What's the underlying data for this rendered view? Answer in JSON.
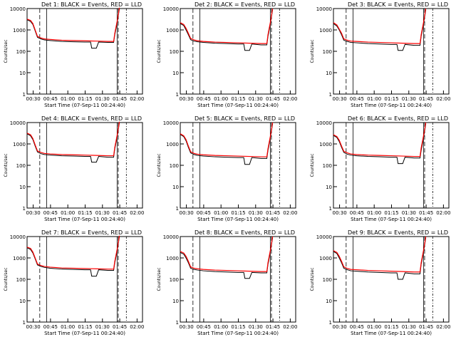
{
  "figure": {
    "ylabel": "Counts/sec",
    "xlabel_prefix": "Start Time (07-Sep-11 00:24:40)"
  },
  "colors": {
    "events": "#000000",
    "lld": "#ff0000",
    "background": "#ffffff"
  },
  "chart_data": [
    {
      "type": "line",
      "title": "Det 1: BLACK = Events, RED = LLD",
      "xlabel": "Start Time (07-Sep-11 00:24:40)",
      "ylabel": "Counts/sec",
      "x_ticks": [
        "00:30",
        "00:45",
        "01:00",
        "01:15",
        "01:30",
        "01:45",
        "02:00"
      ],
      "y_ticks": [
        "1",
        "10",
        "100",
        "1000",
        "10000"
      ],
      "y_scale": "log",
      "ylim": [
        1,
        10000
      ],
      "series": [
        {
          "name": "BLACK = Events",
          "x": [
            0,
            3,
            5,
            7,
            9,
            12,
            15,
            20,
            30,
            40,
            50,
            55,
            56,
            60,
            62,
            70,
            75,
            76,
            78,
            80
          ],
          "y": [
            3000,
            2500,
            1800,
            900,
            450,
            380,
            340,
            320,
            290,
            280,
            270,
            270,
            140,
            140,
            270,
            260,
            260,
            600,
            2000,
            10000
          ]
        },
        {
          "name": "RED = LLD",
          "x": [
            0,
            3,
            5,
            7,
            9,
            12,
            15,
            20,
            30,
            40,
            50,
            60,
            70,
            75,
            76,
            78,
            80
          ],
          "y": [
            3200,
            2800,
            2000,
            1000,
            500,
            420,
            380,
            360,
            330,
            320,
            310,
            300,
            290,
            290,
            700,
            2500,
            11000
          ]
        }
      ]
    },
    {
      "type": "line",
      "title": "Det 2: BLACK = Events, RED = LLD",
      "xlabel": "Start Time (07-Sep-11 00:24:40)",
      "ylabel": "Counts/sec",
      "x_ticks": [
        "00:30",
        "00:45",
        "01:00",
        "01:15",
        "01:30",
        "01:45",
        "02:00"
      ],
      "y_ticks": [
        "1",
        "10",
        "100",
        "1000",
        "10000"
      ],
      "y_scale": "log",
      "ylim": [
        1,
        10000
      ],
      "series": [
        {
          "name": "BLACK = Events",
          "x": [
            0,
            3,
            5,
            7,
            9,
            12,
            15,
            20,
            30,
            40,
            50,
            55,
            56,
            60,
            62,
            70,
            75,
            76,
            78,
            80
          ],
          "y": [
            2000,
            1600,
            1000,
            600,
            350,
            300,
            280,
            260,
            240,
            230,
            220,
            220,
            110,
            110,
            220,
            200,
            200,
            500,
            1800,
            9000
          ]
        },
        {
          "name": "RED = LLD",
          "x": [
            0,
            3,
            5,
            7,
            9,
            12,
            15,
            20,
            30,
            40,
            50,
            60,
            70,
            75,
            76,
            78,
            80
          ],
          "y": [
            2200,
            1800,
            1200,
            700,
            400,
            340,
            310,
            290,
            270,
            260,
            250,
            240,
            230,
            230,
            600,
            2200,
            10000
          ]
        }
      ]
    },
    {
      "type": "line",
      "title": "Det 3: BLACK = Events, RED = LLD",
      "xlabel": "Start Time (07-Sep-11 00:24:40)",
      "ylabel": "Counts/sec",
      "x_ticks": [
        "00:30",
        "00:45",
        "01:00",
        "01:15",
        "01:30",
        "01:45",
        "02:00"
      ],
      "y_ticks": [
        "1",
        "10",
        "100",
        "1000",
        "10000"
      ],
      "y_scale": "log",
      "ylim": [
        1,
        10000
      ],
      "series": [
        {
          "name": "BLACK = Events",
          "x": [
            0,
            3,
            5,
            7,
            9,
            12,
            15,
            20,
            30,
            40,
            50,
            55,
            56,
            60,
            62,
            70,
            75,
            76,
            78,
            80
          ],
          "y": [
            2000,
            1500,
            1000,
            600,
            330,
            290,
            260,
            250,
            230,
            220,
            210,
            210,
            110,
            110,
            210,
            190,
            190,
            500,
            1800,
            9000
          ]
        },
        {
          "name": "RED = LLD",
          "x": [
            0,
            3,
            5,
            7,
            9,
            12,
            15,
            20,
            30,
            40,
            50,
            60,
            70,
            75,
            76,
            78,
            80
          ],
          "y": [
            2200,
            1700,
            1100,
            700,
            380,
            330,
            300,
            290,
            270,
            260,
            250,
            240,
            230,
            230,
            600,
            2200,
            10000
          ]
        }
      ]
    },
    {
      "type": "line",
      "title": "Det 4: BLACK = Events, RED = LLD",
      "xlabel": "Start Time (07-Sep-11 00:24:40)",
      "ylabel": "Counts/sec",
      "x_ticks": [
        "00:30",
        "00:45",
        "01:00",
        "01:15",
        "01:30",
        "01:45",
        "02:00"
      ],
      "y_ticks": [
        "1",
        "10",
        "100",
        "1000",
        "10000"
      ],
      "y_scale": "log",
      "ylim": [
        1,
        10000
      ],
      "series": [
        {
          "name": "BLACK = Events",
          "x": [
            0,
            3,
            5,
            7,
            9,
            12,
            15,
            20,
            30,
            40,
            50,
            55,
            56,
            60,
            62,
            70,
            75,
            76,
            78,
            80
          ],
          "y": [
            3000,
            2400,
            1600,
            800,
            420,
            350,
            320,
            300,
            280,
            270,
            260,
            260,
            140,
            140,
            260,
            240,
            240,
            600,
            2000,
            10000
          ]
        },
        {
          "name": "RED = LLD",
          "x": [
            0,
            3,
            5,
            7,
            9,
            12,
            15,
            20,
            30,
            40,
            50,
            60,
            70,
            75,
            76,
            78,
            80
          ],
          "y": [
            3200,
            2700,
            1800,
            900,
            470,
            400,
            360,
            340,
            320,
            310,
            300,
            290,
            280,
            280,
            700,
            2500,
            11000
          ]
        }
      ]
    },
    {
      "type": "line",
      "title": "Det 5: BLACK = Events, RED = LLD",
      "xlabel": "Start Time (07-Sep-11 00:24:40)",
      "ylabel": "Counts/sec",
      "x_ticks": [
        "00:30",
        "00:45",
        "01:00",
        "01:15",
        "01:30",
        "01:45",
        "02:00"
      ],
      "y_ticks": [
        "1",
        "10",
        "100",
        "1000",
        "10000"
      ],
      "y_scale": "log",
      "ylim": [
        1,
        10000
      ],
      "series": [
        {
          "name": "BLACK = Events",
          "x": [
            0,
            3,
            5,
            7,
            9,
            12,
            15,
            20,
            30,
            40,
            50,
            55,
            56,
            60,
            62,
            70,
            75,
            76,
            78,
            80
          ],
          "y": [
            2800,
            2200,
            1400,
            700,
            380,
            320,
            290,
            270,
            250,
            240,
            230,
            230,
            110,
            110,
            230,
            210,
            210,
            500,
            1800,
            9000
          ]
        },
        {
          "name": "RED = LLD",
          "x": [
            0,
            3,
            5,
            7,
            9,
            12,
            15,
            20,
            30,
            40,
            50,
            60,
            70,
            75,
            76,
            78,
            80
          ],
          "y": [
            3000,
            2400,
            1600,
            800,
            430,
            360,
            330,
            310,
            290,
            280,
            270,
            260,
            250,
            250,
            600,
            2200,
            10000
          ]
        }
      ]
    },
    {
      "type": "line",
      "title": "Det 6: BLACK = Events, RED = LLD",
      "xlabel": "Start Time (07-Sep-11 00:24:40)",
      "ylabel": "Counts/sec",
      "x_ticks": [
        "00:30",
        "00:45",
        "01:00",
        "01:15",
        "01:30",
        "01:45",
        "02:00"
      ],
      "y_ticks": [
        "1",
        "10",
        "100",
        "1000",
        "10000"
      ],
      "y_scale": "log",
      "ylim": [
        1,
        10000
      ],
      "series": [
        {
          "name": "BLACK = Events",
          "x": [
            0,
            3,
            5,
            7,
            9,
            12,
            15,
            20,
            30,
            40,
            50,
            55,
            56,
            60,
            62,
            70,
            75,
            76,
            78,
            80
          ],
          "y": [
            2500,
            2000,
            1300,
            700,
            400,
            330,
            300,
            280,
            260,
            250,
            240,
            240,
            120,
            120,
            240,
            220,
            220,
            500,
            1800,
            9000
          ]
        },
        {
          "name": "RED = LLD",
          "x": [
            0,
            3,
            5,
            7,
            9,
            12,
            15,
            20,
            30,
            40,
            50,
            60,
            70,
            75,
            76,
            78,
            80
          ],
          "y": [
            2700,
            2200,
            1500,
            800,
            450,
            380,
            340,
            320,
            300,
            290,
            280,
            270,
            260,
            260,
            650,
            2300,
            10000
          ]
        }
      ]
    },
    {
      "type": "line",
      "title": "Det 7: BLACK = Events, RED = LLD",
      "xlabel": "Start Time (07-Sep-11 00:24:40)",
      "ylabel": "Counts/sec",
      "x_ticks": [
        "00:30",
        "00:45",
        "01:00",
        "01:15",
        "01:30",
        "01:45",
        "02:00"
      ],
      "y_ticks": [
        "1",
        "10",
        "100",
        "1000",
        "10000"
      ],
      "y_scale": "log",
      "ylim": [
        1,
        10000
      ],
      "series": [
        {
          "name": "BLACK = Events",
          "x": [
            0,
            3,
            5,
            7,
            9,
            12,
            15,
            20,
            30,
            40,
            50,
            55,
            56,
            60,
            62,
            70,
            75,
            76,
            78,
            80
          ],
          "y": [
            3000,
            2500,
            1700,
            900,
            470,
            400,
            360,
            330,
            300,
            290,
            280,
            280,
            140,
            140,
            280,
            260,
            260,
            600,
            2000,
            10000
          ]
        },
        {
          "name": "RED = LLD",
          "x": [
            0,
            3,
            5,
            7,
            9,
            12,
            15,
            20,
            30,
            40,
            50,
            60,
            70,
            75,
            76,
            78,
            80
          ],
          "y": [
            3200,
            2800,
            1900,
            1000,
            520,
            440,
            400,
            370,
            340,
            330,
            320,
            310,
            300,
            300,
            700,
            2500,
            11000
          ]
        }
      ]
    },
    {
      "type": "line",
      "title": "Det 8: BLACK = Events, RED = LLD",
      "xlabel": "Start Time (07-Sep-11 00:24:40)",
      "ylabel": "Counts/sec",
      "x_ticks": [
        "00:30",
        "00:45",
        "01:00",
        "01:15",
        "01:30",
        "01:45",
        "02:00"
      ],
      "y_ticks": [
        "1",
        "10",
        "100",
        "1000",
        "10000"
      ],
      "y_scale": "log",
      "ylim": [
        1,
        10000
      ],
      "series": [
        {
          "name": "BLACK = Events",
          "x": [
            0,
            3,
            5,
            7,
            9,
            12,
            15,
            20,
            30,
            40,
            50,
            55,
            56,
            60,
            62,
            70,
            75,
            76,
            78,
            80
          ],
          "y": [
            1800,
            1500,
            1000,
            600,
            330,
            290,
            270,
            250,
            230,
            220,
            210,
            210,
            110,
            110,
            210,
            200,
            200,
            500,
            1800,
            9000
          ]
        },
        {
          "name": "RED = LLD",
          "x": [
            0,
            3,
            5,
            7,
            9,
            12,
            15,
            20,
            30,
            40,
            50,
            60,
            70,
            75,
            76,
            78,
            80
          ],
          "y": [
            2000,
            1700,
            1200,
            700,
            380,
            330,
            310,
            290,
            270,
            260,
            250,
            240,
            230,
            230,
            600,
            2200,
            10000
          ]
        }
      ]
    },
    {
      "type": "line",
      "title": "Det 9: BLACK = Events, RED = LLD",
      "xlabel": "Start Time (07-Sep-11 00:24:40)",
      "ylabel": "Counts/sec",
      "x_ticks": [
        "00:30",
        "00:45",
        "01:00",
        "01:15",
        "01:30",
        "01:45",
        "02:00"
      ],
      "y_ticks": [
        "1",
        "10",
        "100",
        "1000",
        "10000"
      ],
      "y_scale": "log",
      "ylim": [
        1,
        10000
      ],
      "series": [
        {
          "name": "BLACK = Events",
          "x": [
            0,
            3,
            5,
            7,
            9,
            12,
            15,
            20,
            30,
            40,
            50,
            55,
            56,
            60,
            62,
            70,
            75,
            76,
            78,
            80
          ],
          "y": [
            2000,
            1600,
            1000,
            600,
            330,
            280,
            250,
            240,
            220,
            210,
            200,
            200,
            100,
            100,
            200,
            180,
            180,
            500,
            1800,
            9000
          ]
        },
        {
          "name": "RED = LLD",
          "x": [
            0,
            3,
            5,
            7,
            9,
            12,
            15,
            20,
            30,
            40,
            50,
            60,
            70,
            75,
            76,
            78,
            80
          ],
          "y": [
            2200,
            1800,
            1200,
            700,
            380,
            320,
            290,
            280,
            260,
            250,
            240,
            230,
            220,
            220,
            600,
            2200,
            10000
          ]
        }
      ]
    }
  ]
}
